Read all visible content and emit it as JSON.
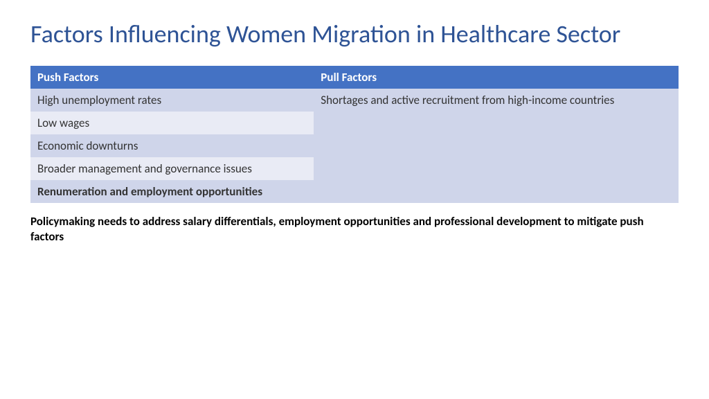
{
  "title": "Factors Influencing Women Migration in Healthcare Sector",
  "title_color": "#2e5395",
  "table": {
    "header_bg": "#4472c4",
    "header_color": "#ffffff",
    "row_odd_bg": "#cfd5ea",
    "row_even_bg": "#e9ebf5",
    "text_color": "#333333",
    "col1_header": "Push Factors",
    "col2_header": "Pull Factors",
    "push_rows": [
      {
        "text": "High unemployment rates",
        "bold": false
      },
      {
        "text": "Low wages",
        "bold": false
      },
      {
        "text": "Economic downturns",
        "bold": false
      },
      {
        "text": "Broader management and governance issues",
        "bold": false
      },
      {
        "text": "Renumeration and employment opportunities",
        "bold": true
      }
    ],
    "pull_text": "Shortages and active recruitment from high-income countries"
  },
  "footer": "Policymaking needs to address salary differentials, employment opportunities and professional development to mitigate push factors",
  "footer_color": "#000000"
}
